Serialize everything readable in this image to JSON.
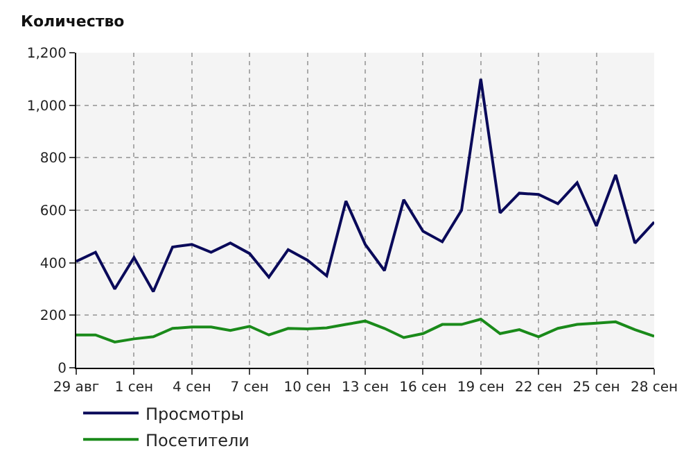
{
  "chart_data": {
    "type": "line",
    "ylabel": "Количество",
    "categories": [
      "29 авг",
      null,
      null,
      "1 сен",
      null,
      null,
      "4 сен",
      null,
      null,
      "7 сен",
      null,
      null,
      "10 сен",
      null,
      null,
      "13 сен",
      null,
      null,
      "16 сен",
      null,
      null,
      "19 сен",
      null,
      null,
      "22 сен",
      null,
      null,
      "25 сен",
      null,
      null,
      "28 сен"
    ],
    "series": [
      {
        "name": "Просмотры",
        "color": "#0a0a5a",
        "values": [
          405,
          440,
          300,
          420,
          290,
          460,
          470,
          440,
          475,
          435,
          345,
          450,
          410,
          350,
          635,
          470,
          370,
          640,
          520,
          480,
          600,
          1100,
          590,
          665,
          660,
          625,
          705,
          540,
          735,
          475,
          555
        ]
      },
      {
        "name": "Посетители",
        "color": "#1a8a1a",
        "values": [
          125,
          125,
          98,
          110,
          118,
          150,
          155,
          155,
          142,
          158,
          125,
          150,
          148,
          152,
          165,
          178,
          150,
          115,
          130,
          165,
          165,
          185,
          130,
          145,
          118,
          150,
          165,
          170,
          175,
          145,
          120
        ]
      }
    ],
    "ylim": [
      0,
      1200
    ],
    "yticks": [
      0,
      200,
      400,
      600,
      800,
      {
        "value": 1000,
        "label": "1,000"
      },
      {
        "value": 1200,
        "label": "1,200"
      }
    ],
    "grid": true,
    "legend": "bottom left",
    "marker": "none",
    "line_style": "solid"
  }
}
